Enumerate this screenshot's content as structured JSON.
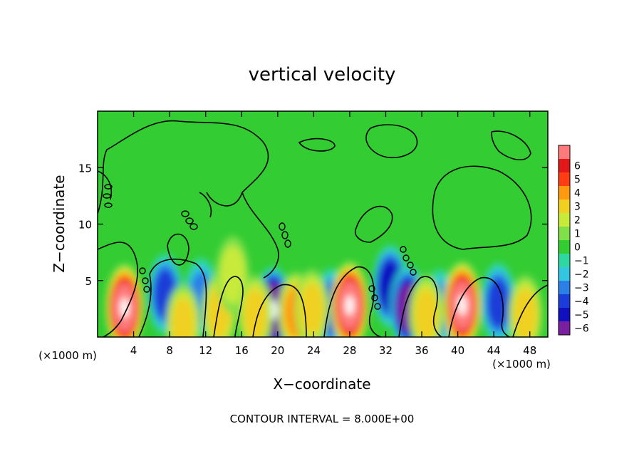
{
  "chart_data": {
    "type": "heatmap",
    "title": "vertical velocity",
    "xlabel": "X−coordinate",
    "ylabel": "Z−coordinate",
    "x_unit_left": "(×1000 m)",
    "x_unit_right": "(×1000 m)",
    "footer": "CONTOUR INTERVAL = 8.000E+00",
    "xlim": [
      0,
      50
    ],
    "ylim": [
      0,
      20
    ],
    "x_ticks": [
      4,
      8,
      12,
      16,
      20,
      24,
      28,
      32,
      36,
      40,
      44,
      48
    ],
    "x_tick_labels": [
      "4",
      "8",
      "12",
      "16",
      "20",
      "24",
      "28",
      "32",
      "36",
      "40",
      "44",
      "48"
    ],
    "y_ticks": [
      5,
      10,
      15
    ],
    "y_tick_labels": [
      "5",
      "10",
      "15"
    ],
    "colorbar": {
      "levels": [
        -6,
        -5,
        -4,
        -3,
        -2,
        -1,
        0,
        1,
        2,
        3,
        4,
        5,
        6
      ],
      "labels": [
        "−6",
        "−5",
        "−4",
        "−3",
        "−2",
        "−1",
        "0",
        "1",
        "2",
        "3",
        "4",
        "5",
        "6"
      ],
      "colors": [
        "#7a1fa0",
        "#1010c0",
        "#1a3cd8",
        "#2c7fe6",
        "#33c6e0",
        "#2ed8a0",
        "#33cc33",
        "#7fe04a",
        "#c8ea3a",
        "#f0d020",
        "#ff9a10",
        "#ff3c14",
        "#e01818",
        "#ff7a7a"
      ]
    },
    "cells": {
      "description_free": true,
      "updrafts": [
        {
          "x": 3.0,
          "z": 2.6,
          "w": 8
        },
        {
          "x": 9.5,
          "z": 1.2,
          "w": 3
        },
        {
          "x": 13.5,
          "z": 2.2,
          "w": 3
        },
        {
          "x": 15.0,
          "z": 5.5,
          "w": 2
        },
        {
          "x": 17.5,
          "z": 2.0,
          "w": 3
        },
        {
          "x": 22.0,
          "z": 2.2,
          "w": 4
        },
        {
          "x": 23.8,
          "z": 2.5,
          "w": 3
        },
        {
          "x": 28.0,
          "z": 2.8,
          "w": 8
        },
        {
          "x": 36.5,
          "z": 2.0,
          "w": 3
        },
        {
          "x": 40.5,
          "z": 2.8,
          "w": 8
        },
        {
          "x": 47.5,
          "z": 2.0,
          "w": 3
        }
      ],
      "downdrafts": [
        {
          "x": 7.5,
          "z": 3.8,
          "w": -4
        },
        {
          "x": 11.5,
          "z": 3.5,
          "w": -3
        },
        {
          "x": 19.5,
          "z": 2.4,
          "w": -7
        },
        {
          "x": 26.0,
          "z": 2.5,
          "w": -4
        },
        {
          "x": 32.5,
          "z": 4.5,
          "w": -5
        },
        {
          "x": 34.5,
          "z": 2.6,
          "w": -6
        },
        {
          "x": 38.0,
          "z": 2.5,
          "w": -3
        },
        {
          "x": 44.5,
          "z": 3.0,
          "w": -4
        }
      ]
    }
  }
}
